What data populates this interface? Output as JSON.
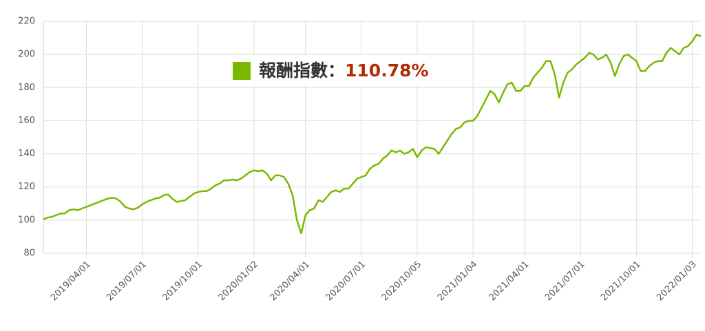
{
  "chart_data": {
    "type": "line",
    "legend_label": "報酬指數：",
    "annotation": "110.78%",
    "categories": [
      null,
      null,
      null,
      null,
      null,
      null,
      null,
      null,
      null,
      null,
      "2019/04/01",
      null,
      null,
      null,
      null,
      null,
      null,
      null,
      null,
      null,
      null,
      null,
      null,
      "2019/07/01",
      null,
      null,
      null,
      null,
      null,
      null,
      null,
      null,
      null,
      null,
      null,
      null,
      "2019/10/01",
      null,
      null,
      null,
      null,
      null,
      null,
      null,
      null,
      null,
      null,
      null,
      null,
      "2020/01/02",
      null,
      null,
      null,
      null,
      null,
      null,
      null,
      null,
      null,
      null,
      null,
      "2020/04/01",
      null,
      null,
      null,
      null,
      null,
      null,
      null,
      null,
      null,
      null,
      null,
      null,
      "2020/07/01",
      null,
      null,
      null,
      null,
      null,
      null,
      null,
      null,
      null,
      null,
      null,
      null,
      "2020/10/05",
      null,
      null,
      null,
      null,
      null,
      null,
      null,
      null,
      null,
      null,
      null,
      null,
      "2021/01/04",
      null,
      null,
      null,
      null,
      null,
      null,
      null,
      null,
      null,
      null,
      null,
      "2021/04/01",
      null,
      null,
      null,
      null,
      null,
      null,
      null,
      null,
      null,
      null,
      null,
      null,
      "2021/07/01",
      null,
      null,
      null,
      null,
      null,
      null,
      null,
      null,
      null,
      null,
      null,
      null,
      "2021/10/01",
      null,
      null,
      null,
      null,
      null,
      null,
      null,
      null,
      null,
      null,
      null,
      null,
      "2022/01/03",
      null,
      null
    ],
    "series": [
      {
        "name": "報酬指數",
        "color": "#7ab800",
        "values": [
          100.5,
          101.5,
          102,
          103,
          104,
          104,
          106,
          106.5,
          106,
          107,
          108,
          109,
          110,
          111,
          112,
          113,
          113.5,
          113,
          111,
          108,
          107,
          106.5,
          107.5,
          109.5,
          111,
          112,
          113,
          113.5,
          115,
          115.5,
          113,
          111,
          111.5,
          112,
          114,
          116,
          117,
          117.5,
          117.5,
          119,
          121,
          122,
          124,
          124,
          124.5,
          124,
          125,
          127,
          129,
          130,
          129.5,
          130,
          128,
          124,
          127,
          127,
          126,
          122,
          115,
          100,
          92,
          103,
          106,
          107,
          112,
          111,
          114,
          117,
          118,
          117,
          119,
          119,
          122,
          125,
          126,
          127,
          131,
          133,
          134,
          137,
          139,
          142,
          141,
          142,
          140,
          141,
          143,
          138,
          142,
          144,
          143.5,
          143,
          140,
          144,
          148,
          152,
          155,
          156,
          159,
          160,
          160,
          163,
          168,
          173,
          178,
          176,
          171,
          177,
          182,
          183,
          178,
          178,
          181,
          181,
          186,
          189,
          192,
          196,
          196,
          188,
          174,
          183,
          189,
          191,
          194,
          196,
          198,
          201,
          200,
          197,
          198,
          200,
          195,
          187,
          194,
          199,
          200,
          198,
          196,
          190,
          190,
          193,
          195,
          196,
          196,
          201,
          204,
          202,
          200,
          204,
          205,
          208,
          212,
          211
        ]
      }
    ],
    "annotation_color": "#b22a00",
    "ylim": [
      80,
      220
    ],
    "yticks": [
      80,
      100,
      120,
      140,
      160,
      180,
      200,
      220
    ],
    "grid": true
  }
}
